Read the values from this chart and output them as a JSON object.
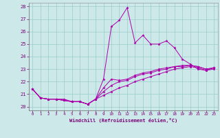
{
  "xlabel": "Windchill (Refroidissement éolien,°C)",
  "xlim": [
    -0.5,
    23.5
  ],
  "ylim": [
    19.7,
    28.3
  ],
  "xticks": [
    0,
    1,
    2,
    3,
    4,
    5,
    6,
    7,
    8,
    9,
    10,
    11,
    12,
    13,
    14,
    15,
    16,
    17,
    18,
    19,
    20,
    21,
    22,
    23
  ],
  "yticks": [
    20,
    21,
    22,
    23,
    24,
    25,
    26,
    27,
    28
  ],
  "background_color": "#cce8e8",
  "grid_color": "#99cccc",
  "line_color": "#aa00aa",
  "lines": [
    {
      "x": [
        0,
        1,
        2,
        3,
        4,
        5,
        6,
        7,
        8,
        9,
        10,
        11,
        12,
        13,
        14,
        15,
        16,
        17,
        18,
        19,
        20,
        21,
        22,
        23
      ],
      "y": [
        21.4,
        20.7,
        20.6,
        20.6,
        20.6,
        20.4,
        20.4,
        20.2,
        20.6,
        22.2,
        26.4,
        26.9,
        27.9,
        25.1,
        25.7,
        25.0,
        25.0,
        25.25,
        24.7,
        23.8,
        23.4,
        23.0,
        22.9,
        23.1
      ]
    },
    {
      "x": [
        0,
        1,
        2,
        3,
        4,
        5,
        6,
        7,
        8,
        9,
        10,
        11,
        12,
        13,
        14,
        15,
        16,
        17,
        18,
        19,
        20,
        21,
        22,
        23
      ],
      "y": [
        21.4,
        20.7,
        20.6,
        20.6,
        20.5,
        20.4,
        20.4,
        20.2,
        20.6,
        21.5,
        22.2,
        22.1,
        22.2,
        22.5,
        22.7,
        22.8,
        23.0,
        23.1,
        23.2,
        23.3,
        23.3,
        23.2,
        23.0,
        23.1
      ]
    },
    {
      "x": [
        0,
        1,
        2,
        3,
        4,
        5,
        6,
        7,
        8,
        9,
        10,
        11,
        12,
        13,
        14,
        15,
        16,
        17,
        18,
        19,
        20,
        21,
        22,
        23
      ],
      "y": [
        21.4,
        20.7,
        20.6,
        20.6,
        20.5,
        20.4,
        20.4,
        20.2,
        20.6,
        21.2,
        21.7,
        22.0,
        22.1,
        22.4,
        22.6,
        22.7,
        22.9,
        23.0,
        23.2,
        23.2,
        23.3,
        23.2,
        23.0,
        23.1
      ]
    },
    {
      "x": [
        0,
        1,
        2,
        3,
        4,
        5,
        6,
        7,
        8,
        9,
        10,
        11,
        12,
        13,
        14,
        15,
        16,
        17,
        18,
        19,
        20,
        21,
        22,
        23
      ],
      "y": [
        21.4,
        20.7,
        20.6,
        20.6,
        20.5,
        20.4,
        20.4,
        20.2,
        20.6,
        20.9,
        21.2,
        21.5,
        21.7,
        22.0,
        22.2,
        22.4,
        22.6,
        22.8,
        23.0,
        23.1,
        23.2,
        23.1,
        22.9,
        23.0
      ]
    }
  ]
}
